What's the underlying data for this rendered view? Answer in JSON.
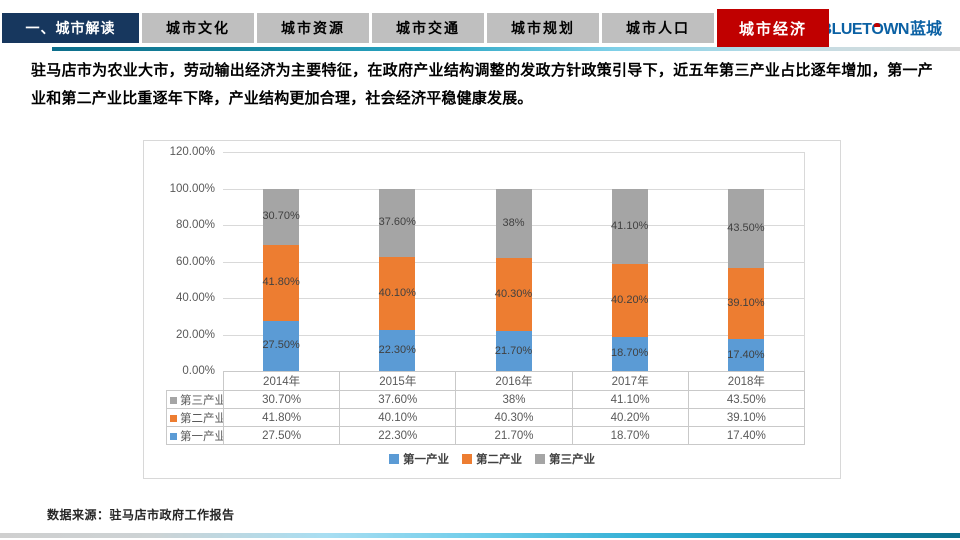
{
  "nav": {
    "section_tab": {
      "id": "city-interpretation",
      "label": "一、城市解读"
    },
    "tabs": [
      {
        "id": "city-culture",
        "label": "城市文化",
        "active": false
      },
      {
        "id": "city-resources",
        "label": "城市资源",
        "active": false
      },
      {
        "id": "city-transport",
        "label": "城市交通",
        "active": false
      },
      {
        "id": "city-planning",
        "label": "城市规划",
        "active": false
      },
      {
        "id": "city-population",
        "label": "城市人口",
        "active": false
      },
      {
        "id": "city-economy",
        "label": "城市经济",
        "active": true
      }
    ]
  },
  "logo": {
    "part1": "BLUET",
    "o": "O",
    "part2": "WN",
    "cn": "蓝城"
  },
  "intro": "驻马店市为农业大市，劳动输出经济为主要特征，在政府产业结构调整的发政方针政策引导下，近五年第三产业占比逐年增加，第一产业和第二产业比重逐年下降，产业结构更加合理，社会经济平稳健康发展。",
  "chart_data": {
    "type": "bar",
    "stacked": true,
    "title": "",
    "categories": [
      "2014年",
      "2015年",
      "2016年",
      "2017年",
      "2018年"
    ],
    "series": [
      {
        "name": "第一产业",
        "color": "#5B9BD5",
        "values": [
          27.5,
          22.3,
          21.7,
          18.7,
          17.4
        ],
        "labels": [
          "27.50%",
          "22.30%",
          "21.70%",
          "18.70%",
          "17.40%"
        ]
      },
      {
        "name": "第二产业",
        "color": "#ED7D31",
        "values": [
          41.8,
          40.1,
          40.3,
          40.2,
          39.1
        ],
        "labels": [
          "41.80%",
          "40.10%",
          "40.30%",
          "40.20%",
          "39.10%"
        ]
      },
      {
        "name": "第三产业",
        "color": "#A5A5A5",
        "values": [
          30.7,
          37.6,
          38,
          41.1,
          43.5
        ],
        "labels": [
          "30.70%",
          "37.60%",
          "38%",
          "41.10%",
          "43.50%"
        ]
      }
    ],
    "y_ticks": [
      "120.00%",
      "100.00%",
      "80.00%",
      "60.00%",
      "40.00%",
      "20.00%",
      "0.00%"
    ],
    "ylim": [
      0,
      120
    ],
    "grid": true,
    "legend_position": "bottom",
    "show_data_table": true
  },
  "source": "数据来源：驻马店市政府工作报告",
  "colors": {
    "nav_navy": "#17375E",
    "nav_active_red": "#C00000",
    "nav_tab_gray": "#BFBFBF",
    "logo_blue": "#0B61A4",
    "series_blue": "#5B9BD5",
    "series_orange": "#ED7D31",
    "series_gray": "#A5A5A5"
  }
}
